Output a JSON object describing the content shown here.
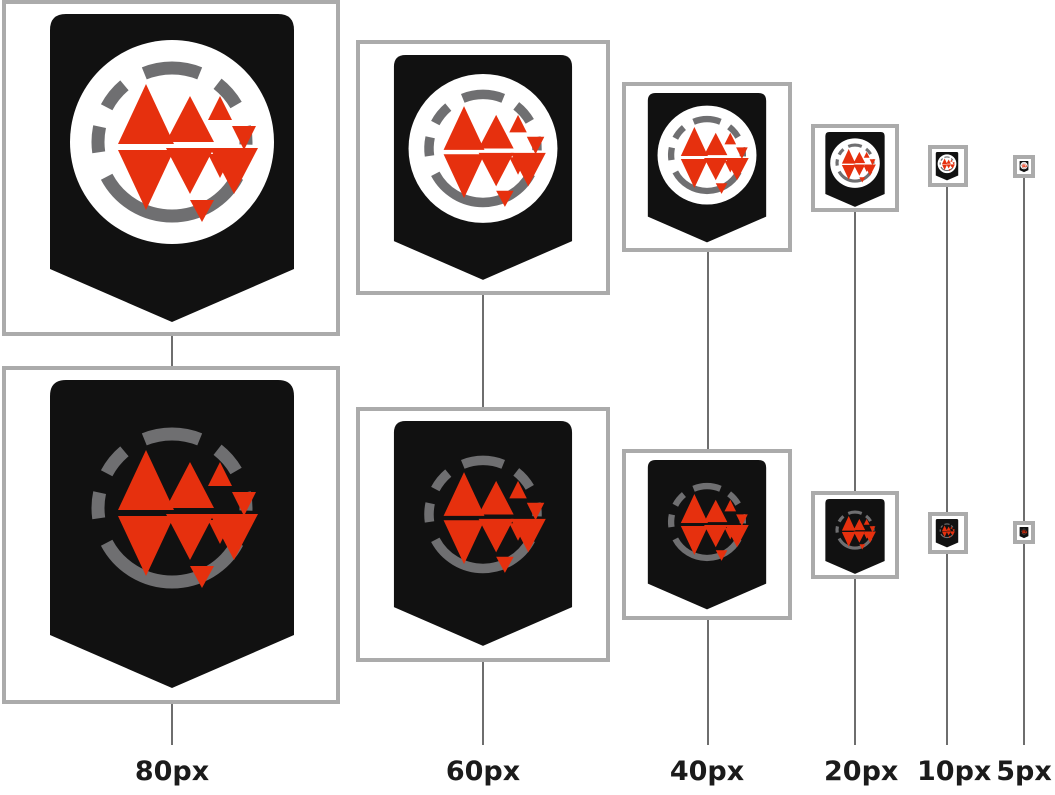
{
  "colors": {
    "frame": "#ababab",
    "connector": "#6e6e6e",
    "shield": "#111111",
    "disc_light": "#ffffff",
    "ring": "#6f6f71",
    "mark": "#e6300e",
    "label": "#1b1b1b"
  },
  "sizes": [
    {
      "label": "80px"
    },
    {
      "label": "60px"
    },
    {
      "label": "40px"
    },
    {
      "label": "20px"
    },
    {
      "label": "10px"
    },
    {
      "label": "5px"
    }
  ],
  "variants": [
    {
      "name": "light-disc"
    },
    {
      "name": "dark"
    }
  ],
  "icon_names": [
    "shield-badge-icon",
    "dashed-ring-icon",
    "triangle-m-logo-icon"
  ]
}
